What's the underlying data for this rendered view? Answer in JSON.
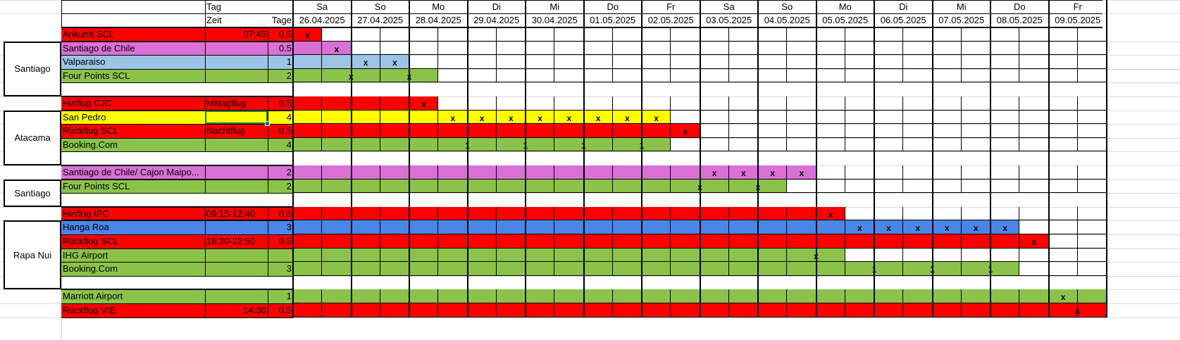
{
  "colors": {
    "red": "#ff0000",
    "pink": "#da70d6",
    "lightblue": "#9dc3e6",
    "blue": "#4a86e8",
    "green": "#8bc34a",
    "yellow": "#ffff00"
  },
  "header": {
    "col_tag": "Tag",
    "col_zeit": "Zeit",
    "col_tage": "Tage"
  },
  "days": [
    {
      "weekday": "Sa",
      "date": "26.04.2025"
    },
    {
      "weekday": "So",
      "date": "27.04.2025"
    },
    {
      "weekday": "Mo",
      "date": "28.04.2025"
    },
    {
      "weekday": "Di",
      "date": "29.04.2025"
    },
    {
      "weekday": "Mi",
      "date": "30.04.2025"
    },
    {
      "weekday": "Do",
      "date": "01.05.2025"
    },
    {
      "weekday": "Fr",
      "date": "02.05.2025"
    },
    {
      "weekday": "Sa",
      "date": "03.05.2025"
    },
    {
      "weekday": "So",
      "date": "04.05.2025"
    },
    {
      "weekday": "Mo",
      "date": "05.05.2025"
    },
    {
      "weekday": "Di",
      "date": "06.05.2025"
    },
    {
      "weekday": "Mi",
      "date": "07.05.2025"
    },
    {
      "weekday": "Do",
      "date": "08.05.2025"
    },
    {
      "weekday": "Fr",
      "date": "09.05.2025"
    }
  ],
  "groups": [
    {
      "label": "Santiago",
      "from_row": 1,
      "to_row": 4
    },
    {
      "label": "Atacama",
      "from_row": 6,
      "to_row": 9
    },
    {
      "label": "Santiago",
      "from_row": 11,
      "to_row": 12
    },
    {
      "label": "Rapa Nui",
      "from_row": 14,
      "to_row": 18
    }
  ],
  "rows": [
    {
      "label": "Ankunft SCL",
      "zeit": "07:45",
      "zeit_align": "right",
      "tage": "0.5",
      "color": "red",
      "bar": [
        0,
        1
      ],
      "marks": [
        {
          "pos": 0.5,
          "v": "x"
        }
      ]
    },
    {
      "label": "Santiago de Chile",
      "zeit": "",
      "tage": "0.5",
      "color": "pink",
      "bar": [
        0,
        2
      ],
      "marks": [
        {
          "pos": 1.5,
          "v": "x"
        }
      ]
    },
    {
      "label": "Valparaiso",
      "zeit": "",
      "tage": "1",
      "color": "lightblue",
      "bar": [
        0,
        4
      ],
      "marks": [
        {
          "pos": 2.5,
          "v": "x"
        },
        {
          "pos": 3.5,
          "v": "x"
        }
      ]
    },
    {
      "label": "Four Points SCL",
      "zeit": "",
      "tage": "2",
      "color": "green",
      "bar": [
        0,
        5
      ],
      "marks": [
        {
          "pos": 2,
          "v": "x"
        },
        {
          "pos": 4,
          "v": "x"
        }
      ]
    },
    null,
    {
      "label": "Hinflug CJC",
      "zeit": "Mittagflug",
      "zeit_align": "left",
      "tage": "0.5",
      "color": "red",
      "bar": [
        0,
        5
      ],
      "marks": [
        {
          "pos": 4.5,
          "v": "x"
        }
      ]
    },
    {
      "label": "San Pedro",
      "zeit": "",
      "tage": "4",
      "color": "yellow",
      "bar": [
        0,
        13
      ],
      "marks": [
        {
          "pos": 5.5,
          "v": "x"
        },
        {
          "pos": 6.5,
          "v": "x"
        },
        {
          "pos": 7.5,
          "v": "x"
        },
        {
          "pos": 8.5,
          "v": "x"
        },
        {
          "pos": 9.5,
          "v": "x"
        },
        {
          "pos": 10.5,
          "v": "x"
        },
        {
          "pos": 11.5,
          "v": "x"
        },
        {
          "pos": 12.5,
          "v": "x"
        }
      ]
    },
    {
      "label": "Rückflug SCL",
      "zeit": "Nachtflug",
      "zeit_align": "left",
      "tage": "0.5",
      "color": "red",
      "bar": [
        0,
        14
      ],
      "marks": [
        {
          "pos": 13.5,
          "v": "x"
        }
      ]
    },
    {
      "label": "Booking.Com",
      "zeit": "",
      "tage": "4",
      "color": "green",
      "bar": [
        0,
        13
      ],
      "marks": [
        {
          "pos": 6,
          "v": "1"
        },
        {
          "pos": 8,
          "v": "1"
        },
        {
          "pos": 10,
          "v": "1"
        },
        {
          "pos": 12,
          "v": "1"
        }
      ]
    },
    null,
    {
      "label": "Santiago de Chile/ Cajon Maipo...",
      "zeit": "",
      "tage": "2",
      "color": "pink",
      "bar": [
        0,
        18
      ],
      "marks": [
        {
          "pos": 14.5,
          "v": "x"
        },
        {
          "pos": 15.5,
          "v": "x"
        },
        {
          "pos": 16.5,
          "v": "x"
        },
        {
          "pos": 17.5,
          "v": "x"
        }
      ]
    },
    {
      "label": "Four Points SCL",
      "zeit": "",
      "tage": "2",
      "color": "green",
      "bar": [
        0,
        17
      ],
      "marks": [
        {
          "pos": 14,
          "v": "x"
        },
        {
          "pos": 16,
          "v": "x"
        }
      ]
    },
    null,
    {
      "label": "Hinflug IPC",
      "zeit": "09:15-12:40",
      "zeit_align": "left",
      "tage": "0.5",
      "color": "red",
      "bar": [
        0,
        19
      ],
      "marks": [
        {
          "pos": 18.5,
          "v": "x"
        }
      ]
    },
    {
      "label": "Hanga Roa",
      "zeit": "",
      "tage": "3",
      "color": "blue",
      "bar": [
        0,
        25
      ],
      "marks": [
        {
          "pos": 19.5,
          "v": "x"
        },
        {
          "pos": 20.5,
          "v": "x"
        },
        {
          "pos": 21.5,
          "v": "x"
        },
        {
          "pos": 22.5,
          "v": "x"
        },
        {
          "pos": 23.5,
          "v": "x"
        },
        {
          "pos": 24.5,
          "v": "x"
        }
      ]
    },
    {
      "label": "Rückflug SCL",
      "zeit": "16:20-22:50",
      "zeit_align": "left",
      "tage": "0.5",
      "color": "red",
      "bar": [
        0,
        26
      ],
      "marks": [
        {
          "pos": 25.5,
          "v": "x"
        }
      ]
    },
    {
      "label": "IHG Airport",
      "zeit": "",
      "tage": "",
      "color": "green",
      "bar": [
        0,
        19
      ],
      "marks": [
        {
          "pos": 18,
          "v": "x"
        }
      ]
    },
    {
      "label": "Booking.Com",
      "zeit": "",
      "tage": "3",
      "color": "green",
      "bar": [
        0,
        25
      ],
      "marks": [
        {
          "pos": 20,
          "v": "1"
        },
        {
          "pos": 22,
          "v": "1"
        },
        {
          "pos": 24,
          "v": "1"
        }
      ]
    },
    null,
    {
      "label": "Marriott Airport",
      "zeit": "",
      "tage": "1",
      "color": "green",
      "bar": [
        0,
        28
      ],
      "marks": [
        {
          "pos": 26.5,
          "v": "x"
        }
      ]
    },
    {
      "label": "Rückflug VIE",
      "zeit": "14:30",
      "zeit_align": "right",
      "tage": "0.5",
      "color": "red",
      "bar": [
        0,
        28
      ],
      "marks": [
        {
          "pos": 27,
          "v": "x"
        }
      ]
    }
  ]
}
